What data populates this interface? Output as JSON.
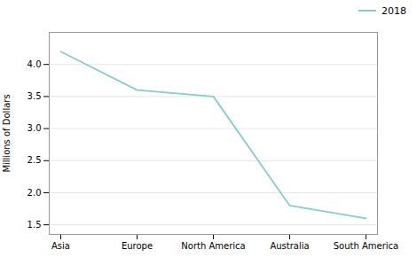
{
  "chart_data": {
    "type": "line",
    "categories": [
      "Asia",
      "Europe",
      "North America",
      "Australia",
      "South America"
    ],
    "values": [
      4.2,
      3.6,
      3.5,
      1.8,
      1.6
    ],
    "color": "#86cdd0",
    "ylabel": "Millions of Dollars",
    "ylim": [
      1.35,
      4.5
    ],
    "yticks": [
      1.5,
      {
        "value": 2.0,
        "label": "2.0"
      },
      2.5,
      {
        "value": 3.0,
        "label": "3.0"
      },
      3.5,
      {
        "value": 4.0,
        "label": "4.0"
      }
    ],
    "grid": true,
    "legend": "upper right",
    "series": [
      {
        "name": "2018",
        "color": "#86cdd0"
      }
    ]
  }
}
